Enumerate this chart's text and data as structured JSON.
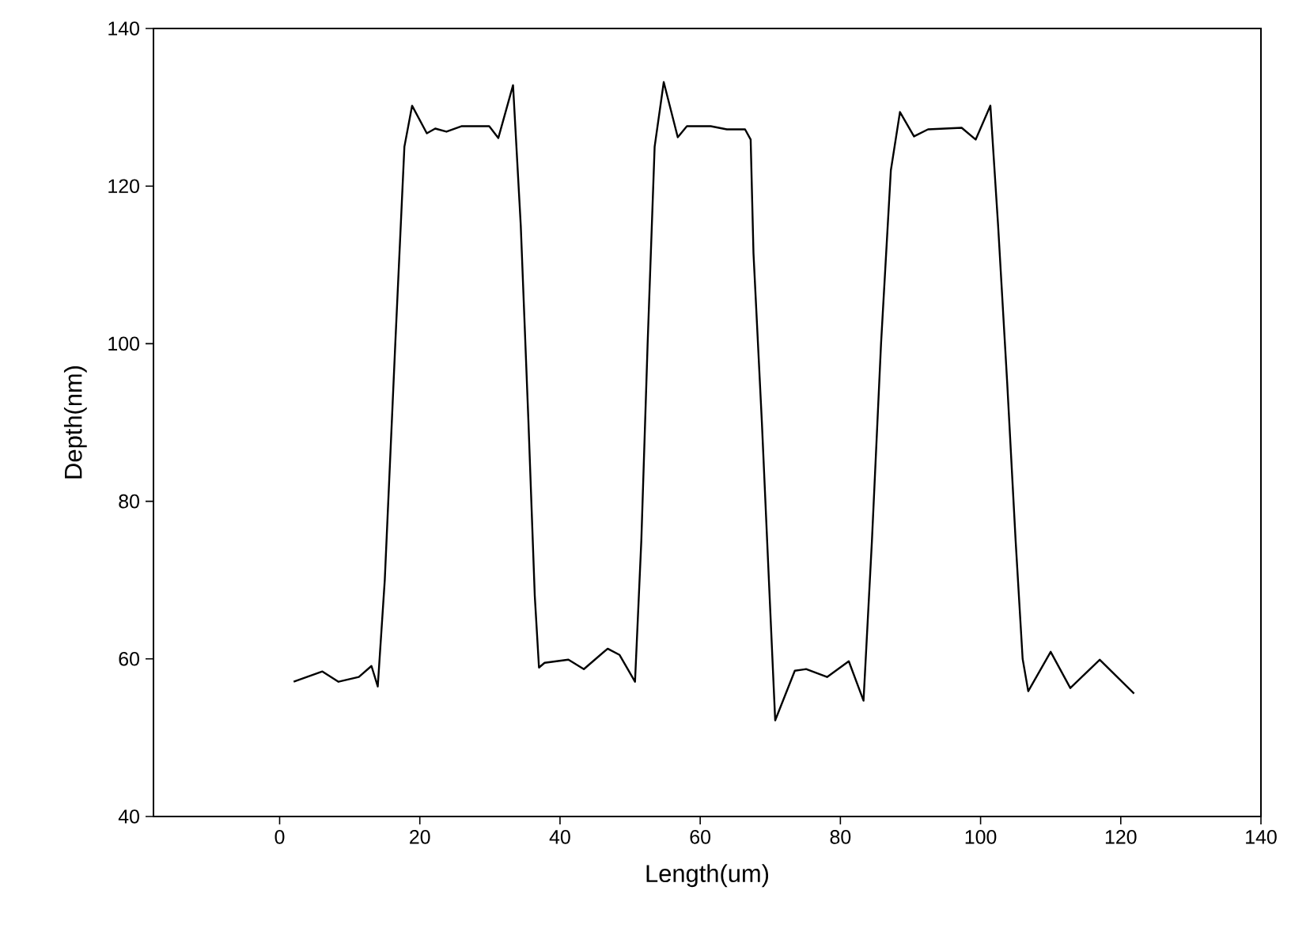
{
  "chart_data": {
    "type": "line",
    "xlabel": "Length(um)",
    "ylabel": "Depth(nm)",
    "xlim": [
      -18,
      140
    ],
    "ylim": [
      40,
      140
    ],
    "xticks": [
      0,
      20,
      40,
      60,
      80,
      100,
      120,
      140
    ],
    "yticks": [
      40,
      60,
      80,
      100,
      120,
      140
    ],
    "marker": "none",
    "line_style": "solid",
    "series": [
      {
        "color": "#000000",
        "x": [
          2.0,
          6.1,
          8.4,
          11.3,
          13.1,
          14.0,
          15.0,
          16.5,
          17.8,
          18.9,
          21.0,
          22.2,
          23.8,
          26.0,
          29.9,
          31.2,
          33.3,
          34.4,
          35.5,
          36.4,
          37.0,
          37.8,
          41.2,
          43.4,
          46.8,
          48.5,
          50.7,
          51.6,
          52.5,
          53.5,
          54.8,
          56.8,
          58.1,
          61.5,
          63.8,
          66.4,
          67.2,
          67.6,
          68.8,
          69.8,
          70.7,
          73.5,
          75.1,
          78.1,
          81.2,
          83.3,
          84.5,
          85.8,
          87.2,
          88.5,
          90.5,
          92.5,
          97.3,
          99.3,
          101.4,
          102.5,
          103.8,
          105.0,
          106.0,
          106.8,
          110.0,
          112.8,
          117.0,
          121.9
        ],
        "values": [
          57.1,
          58.4,
          57.1,
          57.7,
          59.1,
          56.5,
          70,
          100,
          125,
          130.2,
          126.7,
          127.3,
          126.9,
          127.6,
          127.6,
          126.1,
          132.8,
          115,
          90,
          68,
          58.9,
          59.5,
          59.9,
          58.7,
          61.3,
          60.5,
          57.1,
          75,
          100,
          125,
          133.2,
          126.2,
          127.6,
          127.6,
          127.2,
          127.2,
          125.9,
          111.5,
          90,
          70,
          52.2,
          58.5,
          58.7,
          57.7,
          59.7,
          54.7,
          75,
          100,
          122,
          129.4,
          126.3,
          127.2,
          127.4,
          125.9,
          130.2,
          115,
          95,
          75,
          60,
          55.9,
          60.9,
          56.3,
          59.9,
          55.6
        ]
      }
    ]
  }
}
